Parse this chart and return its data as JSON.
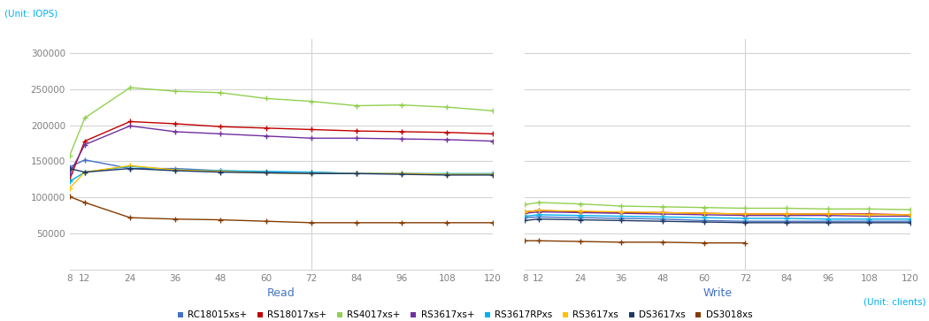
{
  "x_labels": [
    8,
    12,
    24,
    36,
    48,
    60,
    72,
    84,
    96,
    108,
    120
  ],
  "ylim": [
    0,
    320000
  ],
  "yticks": [
    50000,
    100000,
    150000,
    200000,
    250000,
    300000
  ],
  "series": [
    {
      "label": "RC18015xs+",
      "color": "#4472c4",
      "read": [
        142000,
        152000,
        140000,
        140000,
        137000,
        135000,
        135000,
        133000,
        133000,
        132000,
        132000
      ],
      "write": [
        72000,
        73000,
        72000,
        71000,
        70000,
        68000,
        67000,
        67000,
        67000,
        67000,
        67000
      ],
      "write_x": [
        8,
        12,
        24,
        36,
        48,
        60,
        72,
        84,
        96,
        108,
        120
      ]
    },
    {
      "label": "RS18017xs+",
      "color": "#c00000",
      "read": [
        125000,
        178000,
        205000,
        202000,
        198000,
        196000,
        194000,
        192000,
        191000,
        190000,
        188000
      ],
      "write": [
        80000,
        82000,
        80000,
        79000,
        79000,
        78000,
        77000,
        77000,
        77000,
        77000,
        76000
      ],
      "write_x": [
        8,
        12,
        24,
        36,
        48,
        60,
        72,
        84,
        96,
        108,
        120
      ]
    },
    {
      "label": "RS4017xs+",
      "color": "#92d050",
      "read": [
        158000,
        210000,
        252000,
        247000,
        245000,
        237000,
        233000,
        227000,
        228000,
        225000,
        220000
      ],
      "write": [
        90000,
        93000,
        91000,
        88000,
        87000,
        86000,
        85000,
        85000,
        84000,
        84000,
        83000
      ],
      "write_x": [
        8,
        12,
        24,
        36,
        48,
        60,
        72,
        84,
        96,
        108,
        120
      ]
    },
    {
      "label": "RS3617xs+",
      "color": "#7030a0",
      "read": [
        133000,
        173000,
        199000,
        191000,
        188000,
        185000,
        182000,
        182000,
        181000,
        180000,
        178000
      ],
      "write": [
        78000,
        80000,
        79000,
        78000,
        77000,
        76000,
        75000,
        75000,
        75000,
        74000,
        74000
      ],
      "write_x": [
        8,
        12,
        24,
        36,
        48,
        60,
        72,
        84,
        96,
        108,
        120
      ]
    },
    {
      "label": "RS3617RPxs",
      "color": "#00b0f0",
      "read": [
        122000,
        135000,
        143000,
        138000,
        137000,
        136000,
        135000,
        133000,
        133000,
        133000,
        133000
      ],
      "write": [
        74000,
        76000,
        75000,
        74000,
        73000,
        72000,
        71000,
        71000,
        70000,
        70000,
        70000
      ],
      "write_x": [
        8,
        12,
        24,
        36,
        48,
        60,
        72,
        84,
        96,
        108,
        120
      ]
    },
    {
      "label": "RS3617xs",
      "color": "#ffc000",
      "read": [
        113000,
        135000,
        144000,
        138000,
        136000,
        134000,
        133000,
        133000,
        133000,
        132000,
        132000
      ],
      "write": [
        80000,
        82000,
        81000,
        80000,
        79000,
        78000,
        77000,
        77000,
        77000,
        76000,
        76000
      ],
      "write_x": [
        8,
        12,
        24,
        36,
        48,
        60,
        72,
        84,
        96,
        108,
        120
      ]
    },
    {
      "label": "DS3617xs",
      "color": "#1f3864",
      "read": [
        140000,
        135000,
        140000,
        137000,
        135000,
        134000,
        133000,
        133000,
        132000,
        131000,
        131000
      ],
      "write": [
        68000,
        70000,
        69000,
        68000,
        67000,
        66000,
        65000,
        65000,
        65000,
        65000,
        65000
      ],
      "write_x": [
        8,
        12,
        24,
        36,
        48,
        60,
        72,
        84,
        96,
        108,
        120
      ]
    },
    {
      "label": "DS3018xs",
      "color": "#843c00",
      "read": [
        101000,
        93000,
        72000,
        70000,
        69000,
        67000,
        65000,
        65000,
        65000,
        65000,
        65000
      ],
      "write": [
        40000,
        40000,
        39000,
        38000,
        38000,
        37000,
        37000
      ],
      "write_x": [
        8,
        12,
        24,
        36,
        48,
        60,
        72
      ]
    }
  ],
  "unit_iops_color": "#00b0f0",
  "unit_clients_color": "#00b0f0",
  "axis_label_color": "#4472c4",
  "grid_color": "#d4d4d4",
  "tick_color": "#808080",
  "background_color": "#ffffff"
}
